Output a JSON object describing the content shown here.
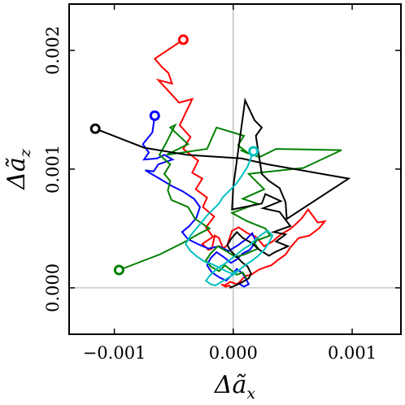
{
  "chart_data": {
    "type": "line",
    "title": "",
    "xlabel": "Δã_x",
    "ylabel": "Δã_z",
    "xlim": [
      -0.00138,
      0.00141
    ],
    "ylim": [
      -0.000391,
      0.00239
    ],
    "grid": false,
    "zero_lines": true,
    "xticks": [
      {
        "value": -0.001,
        "label": "−0.001"
      },
      {
        "value": 0.0,
        "label": "0.000"
      },
      {
        "value": 0.001,
        "label": "0.001"
      }
    ],
    "yticks": [
      {
        "value": 0.0,
        "label": "0.000"
      },
      {
        "value": 0.001,
        "label": "0.001"
      },
      {
        "value": 0.002,
        "label": "0.002"
      }
    ],
    "series": [
      {
        "color": "#ff0000",
        "x": [
          -0.00042,
          -0.00066,
          -0.0006,
          -0.000545,
          -0.000515,
          -0.00063,
          -0.000455,
          -0.000345,
          -0.00045,
          -0.00036,
          -0.00042,
          -0.000295,
          -0.000345,
          -0.00026,
          -0.000315,
          -0.00022,
          -0.000255,
          -0.00016,
          -0.00023,
          -0.00017,
          -0.00026,
          -0.00021,
          -0.00018,
          -0.000155,
          -0.00012,
          -8.5e-05,
          -5e-05,
          -1e-05,
          4.5e-05,
          0.00012,
          0.00019,
          0.00026,
          0.00033,
          0.0004,
          0.00047,
          0.00052,
          0.00058,
          0.00063,
          0.00071,
          0.00077,
          0.00072,
          0.00064,
          0.00055,
          0.00048,
          0.00044,
          0.00037,
          0.00032,
          0.00026,
          0.00021,
          0.00015,
          0.0001,
          5.5e-05,
          3e-05,
          -2.5e-05,
          -7.5e-05,
          -0.0001,
          -6.5e-05,
          -3.5e-05,
          -1.5e-05
        ],
        "y": [
          0.00209,
          0.00193,
          0.00186,
          0.00181,
          0.00172,
          0.00175,
          0.00156,
          0.00159,
          0.00137,
          0.00127,
          0.00117,
          0.00107,
          0.00097,
          0.00092,
          0.00083,
          0.00076,
          0.00068,
          0.0006,
          0.00051,
          0.00043,
          0.00037,
          0.00032,
          0.00033,
          0.00044,
          0.00042,
          0.00033,
          0.00036,
          0.00048,
          0.00051,
          0.00046,
          0.00043,
          0.00035,
          0.00039,
          0.00045,
          0.00049,
          0.00053,
          0.00059,
          0.00066,
          0.00055,
          0.00056,
          0.0005,
          0.00044,
          0.00042,
          0.00034,
          0.00028,
          0.00023,
          0.00019,
          0.00017,
          0.00015,
          0.00011,
          0.0001,
          5e-05,
          3e-05,
          5e-05,
          2e-05,
          3e-05,
          1e-05,
          2e-05,
          0.0
        ]
      },
      {
        "color": "#0000ff",
        "x": [
          -0.00066,
          -0.00068,
          -0.00076,
          -0.00071,
          -0.00075,
          -0.00064,
          -0.00058,
          -0.00051,
          -0.00063,
          -0.00067,
          -0.00074,
          -0.00062,
          -0.00052,
          -0.00042,
          -0.00033,
          -0.00028,
          -0.00031,
          -0.00037,
          -0.00043,
          -0.00038,
          -0.0003,
          -0.00021,
          -0.00012,
          -4e-05,
          4e-05,
          0.00011,
          0.00016,
          0.00019,
          0.00014,
          8e-05,
          3e-05,
          -2e-05,
          -8e-05,
          -0.00014,
          -0.00019,
          -0.00022,
          -0.00018,
          -0.00012,
          -6e-05,
          -1e-05,
          3e-05,
          8e-05,
          0.00011,
          0.00013,
          9e-05,
          4e-05
        ],
        "y": [
          0.00145,
          0.00131,
          0.00121,
          0.00114,
          0.00108,
          0.00109,
          0.00112,
          0.00108,
          0.00104,
          0.00098,
          0.00099,
          0.00092,
          0.00086,
          0.00081,
          0.00075,
          0.00068,
          0.00059,
          0.00052,
          0.00047,
          0.00041,
          0.00037,
          0.00033,
          0.00035,
          0.00031,
          0.00036,
          0.00041,
          0.00046,
          0.00039,
          0.00032,
          0.00029,
          0.00024,
          0.00021,
          0.00026,
          0.0003,
          0.00025,
          0.00019,
          0.00013,
          9e-05,
          6e-05,
          0.00011,
          0.00016,
          0.00012,
          7e-05,
          3e-05,
          1e-05,
          4e-05
        ]
      },
      {
        "color": "#008000",
        "x": [
          -0.00096,
          -0.00062,
          -0.00042,
          -0.00028,
          -0.0002,
          -0.00032,
          -0.00038,
          -0.00052,
          -0.00055,
          -0.00053,
          -0.00058,
          -0.00053,
          -0.00062,
          -0.00057,
          -0.00049,
          -0.00053,
          -0.00038,
          -0.00056,
          -0.00022,
          -0.00014,
          9e-05,
          4e-05,
          0.00013,
          6e-05,
          0.00022,
          0.00036,
          0.00091,
          0.00059,
          0.00013,
          0.00026,
          8e-05,
          0.0002,
          -1e-05,
          0.00012,
          0.00027,
          0.00031,
          0.00017,
          0.00021,
          9e-05,
          2e-05,
          -6e-05,
          -0.00013,
          -0.00019,
          -0.00023,
          -0.00019,
          -0.00012,
          -7e-05,
          -2e-05,
          3e-05,
          8e-05,
          0.00011
        ],
        "y": [
          0.00015,
          0.00028,
          0.00038,
          0.00046,
          0.0005,
          0.00058,
          0.00068,
          0.00074,
          0.00082,
          0.0009,
          0.00096,
          0.00104,
          0.00112,
          0.00121,
          0.00137,
          0.00135,
          0.00121,
          0.00112,
          0.00117,
          0.00135,
          0.00128,
          0.0012,
          0.00113,
          0.00116,
          0.0011,
          0.00117,
          0.00116,
          0.00101,
          0.00096,
          0.00083,
          0.00075,
          0.00071,
          0.00063,
          0.00056,
          0.0005,
          0.00044,
          0.00039,
          0.00033,
          0.00028,
          0.00026,
          0.00031,
          0.00035,
          0.00029,
          0.00023,
          0.00018,
          0.00014,
          0.00019,
          0.00015,
          0.00011,
          0.00013,
          8e-05
        ]
      },
      {
        "color": "#000000",
        "x": [
          -0.00116,
          -0.00075,
          -0.00039,
          -0.00024,
          7e-05,
          0.00029,
          0.00097,
          0.00045,
          0.00044,
          0.00039,
          0.0003,
          0.00024,
          0.00019,
          0.00024,
          0.00018,
          0.0001,
          0.0,
          -1e-05,
          0.00024,
          0.00027,
          0.0004,
          0.00025,
          0.00039,
          0.00048,
          0.00034,
          0.00044,
          0.00036,
          0.00046,
          0.00035,
          0.0003,
          0.00022,
          0.00015,
          8e-05,
          3e-05,
          -2e-05,
          -5e-05,
          -2e-05,
          3e-05,
          8e-05,
          0.00012,
          0.00015,
          0.00013,
          8e-05,
          2e-05,
          -3e-05
        ],
        "y": [
          0.00134,
          0.00118,
          0.00112,
          0.00111,
          0.00109,
          0.00104,
          0.00092,
          0.00058,
          0.00072,
          0.00084,
          0.0009,
          0.00096,
          0.00128,
          0.00135,
          0.00141,
          0.00158,
          0.00085,
          0.00066,
          0.00071,
          0.00079,
          0.00073,
          0.00067,
          0.00064,
          0.00052,
          0.00047,
          0.00045,
          0.00039,
          0.00035,
          0.0003,
          0.00027,
          0.00032,
          0.00038,
          0.00042,
          0.00047,
          0.00041,
          0.00036,
          0.00031,
          0.00026,
          0.00021,
          0.00018,
          0.00012,
          8e-05,
          5e-05,
          2e-05,
          0.0
        ]
      },
      {
        "color": "#00bfbf",
        "x": [
          0.00017,
          0.00012,
          7e-05,
          2e-05,
          -3e-05,
          -9e-05,
          -0.00012,
          -0.00017,
          -0.00022,
          -0.00026,
          -0.00031,
          -0.00036,
          -0.0004,
          -0.00036,
          -0.0003,
          -0.00024,
          -0.00018,
          -0.00012,
          -6e-05,
          -1e-05,
          5e-05,
          0.0001,
          0.00016,
          0.00021,
          0.00026,
          0.0003,
          0.00033,
          0.00029,
          0.00024,
          0.00019,
          0.00014,
          9e-05,
          4e-05,
          -1e-05,
          -6e-05,
          -0.00011,
          -0.00016,
          -0.0002,
          -0.00023,
          -0.00019,
          -0.00015,
          -0.0001,
          -5e-05,
          0.0,
          4e-05
        ],
        "y": [
          0.00115,
          0.00102,
          0.00094,
          0.00087,
          0.00082,
          0.00076,
          0.00071,
          0.00066,
          0.00061,
          0.00056,
          0.0005,
          0.00044,
          0.00037,
          0.00031,
          0.00026,
          0.00022,
          0.0002,
          0.00017,
          0.00014,
          0.00012,
          0.00015,
          0.00019,
          0.00023,
          0.00027,
          0.00032,
          0.00038,
          0.00044,
          0.00048,
          0.00045,
          0.00041,
          0.00036,
          0.00033,
          0.00029,
          0.00025,
          0.00021,
          0.00018,
          0.00014,
          0.0001,
          6e-05,
          3e-05,
          2e-05,
          5e-05,
          8e-05,
          0.00011,
          0.00014
        ]
      }
    ]
  }
}
